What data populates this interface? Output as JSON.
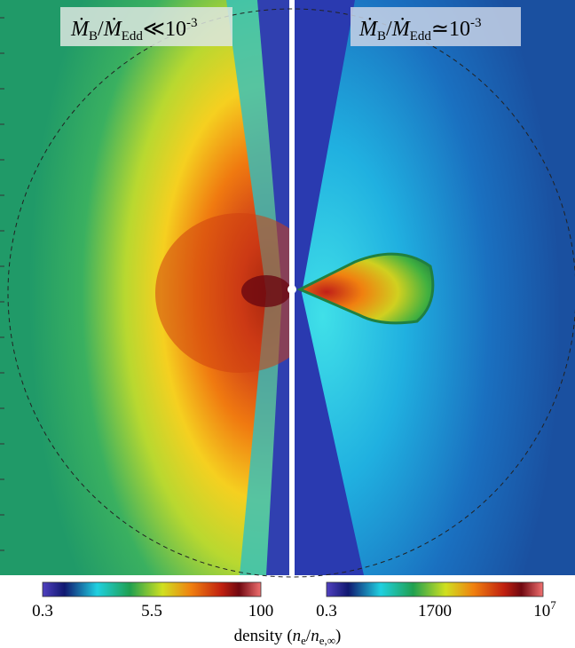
{
  "panels": [
    {
      "label": {
        "num": "Ṁ",
        "num_sub": "B",
        "slash": "/",
        "den": "Ṁ",
        "den_sub": "Edd",
        "relation": "≪",
        "base": "10",
        "exp": "-3"
      }
    },
    {
      "label": {
        "num": "Ṁ",
        "num_sub": "B",
        "slash": "/",
        "den": "Ṁ",
        "den_sub": "Edd",
        "relation": "≃",
        "base": "10",
        "exp": "-3"
      }
    }
  ],
  "colorbars": [
    {
      "ticks": [
        {
          "text": "0.3"
        },
        {
          "text": "5.5"
        },
        {
          "text": "100"
        }
      ]
    },
    {
      "ticks": [
        {
          "text": "0.3"
        },
        {
          "text": "1700"
        },
        {
          "base": "10",
          "exp": "7"
        }
      ]
    }
  ],
  "caption": {
    "word": "density",
    "open": "(",
    "n1": "n",
    "sub1": "e",
    "slash": "/",
    "n2": "n",
    "sub2": "e,∞",
    "close": ")"
  }
}
